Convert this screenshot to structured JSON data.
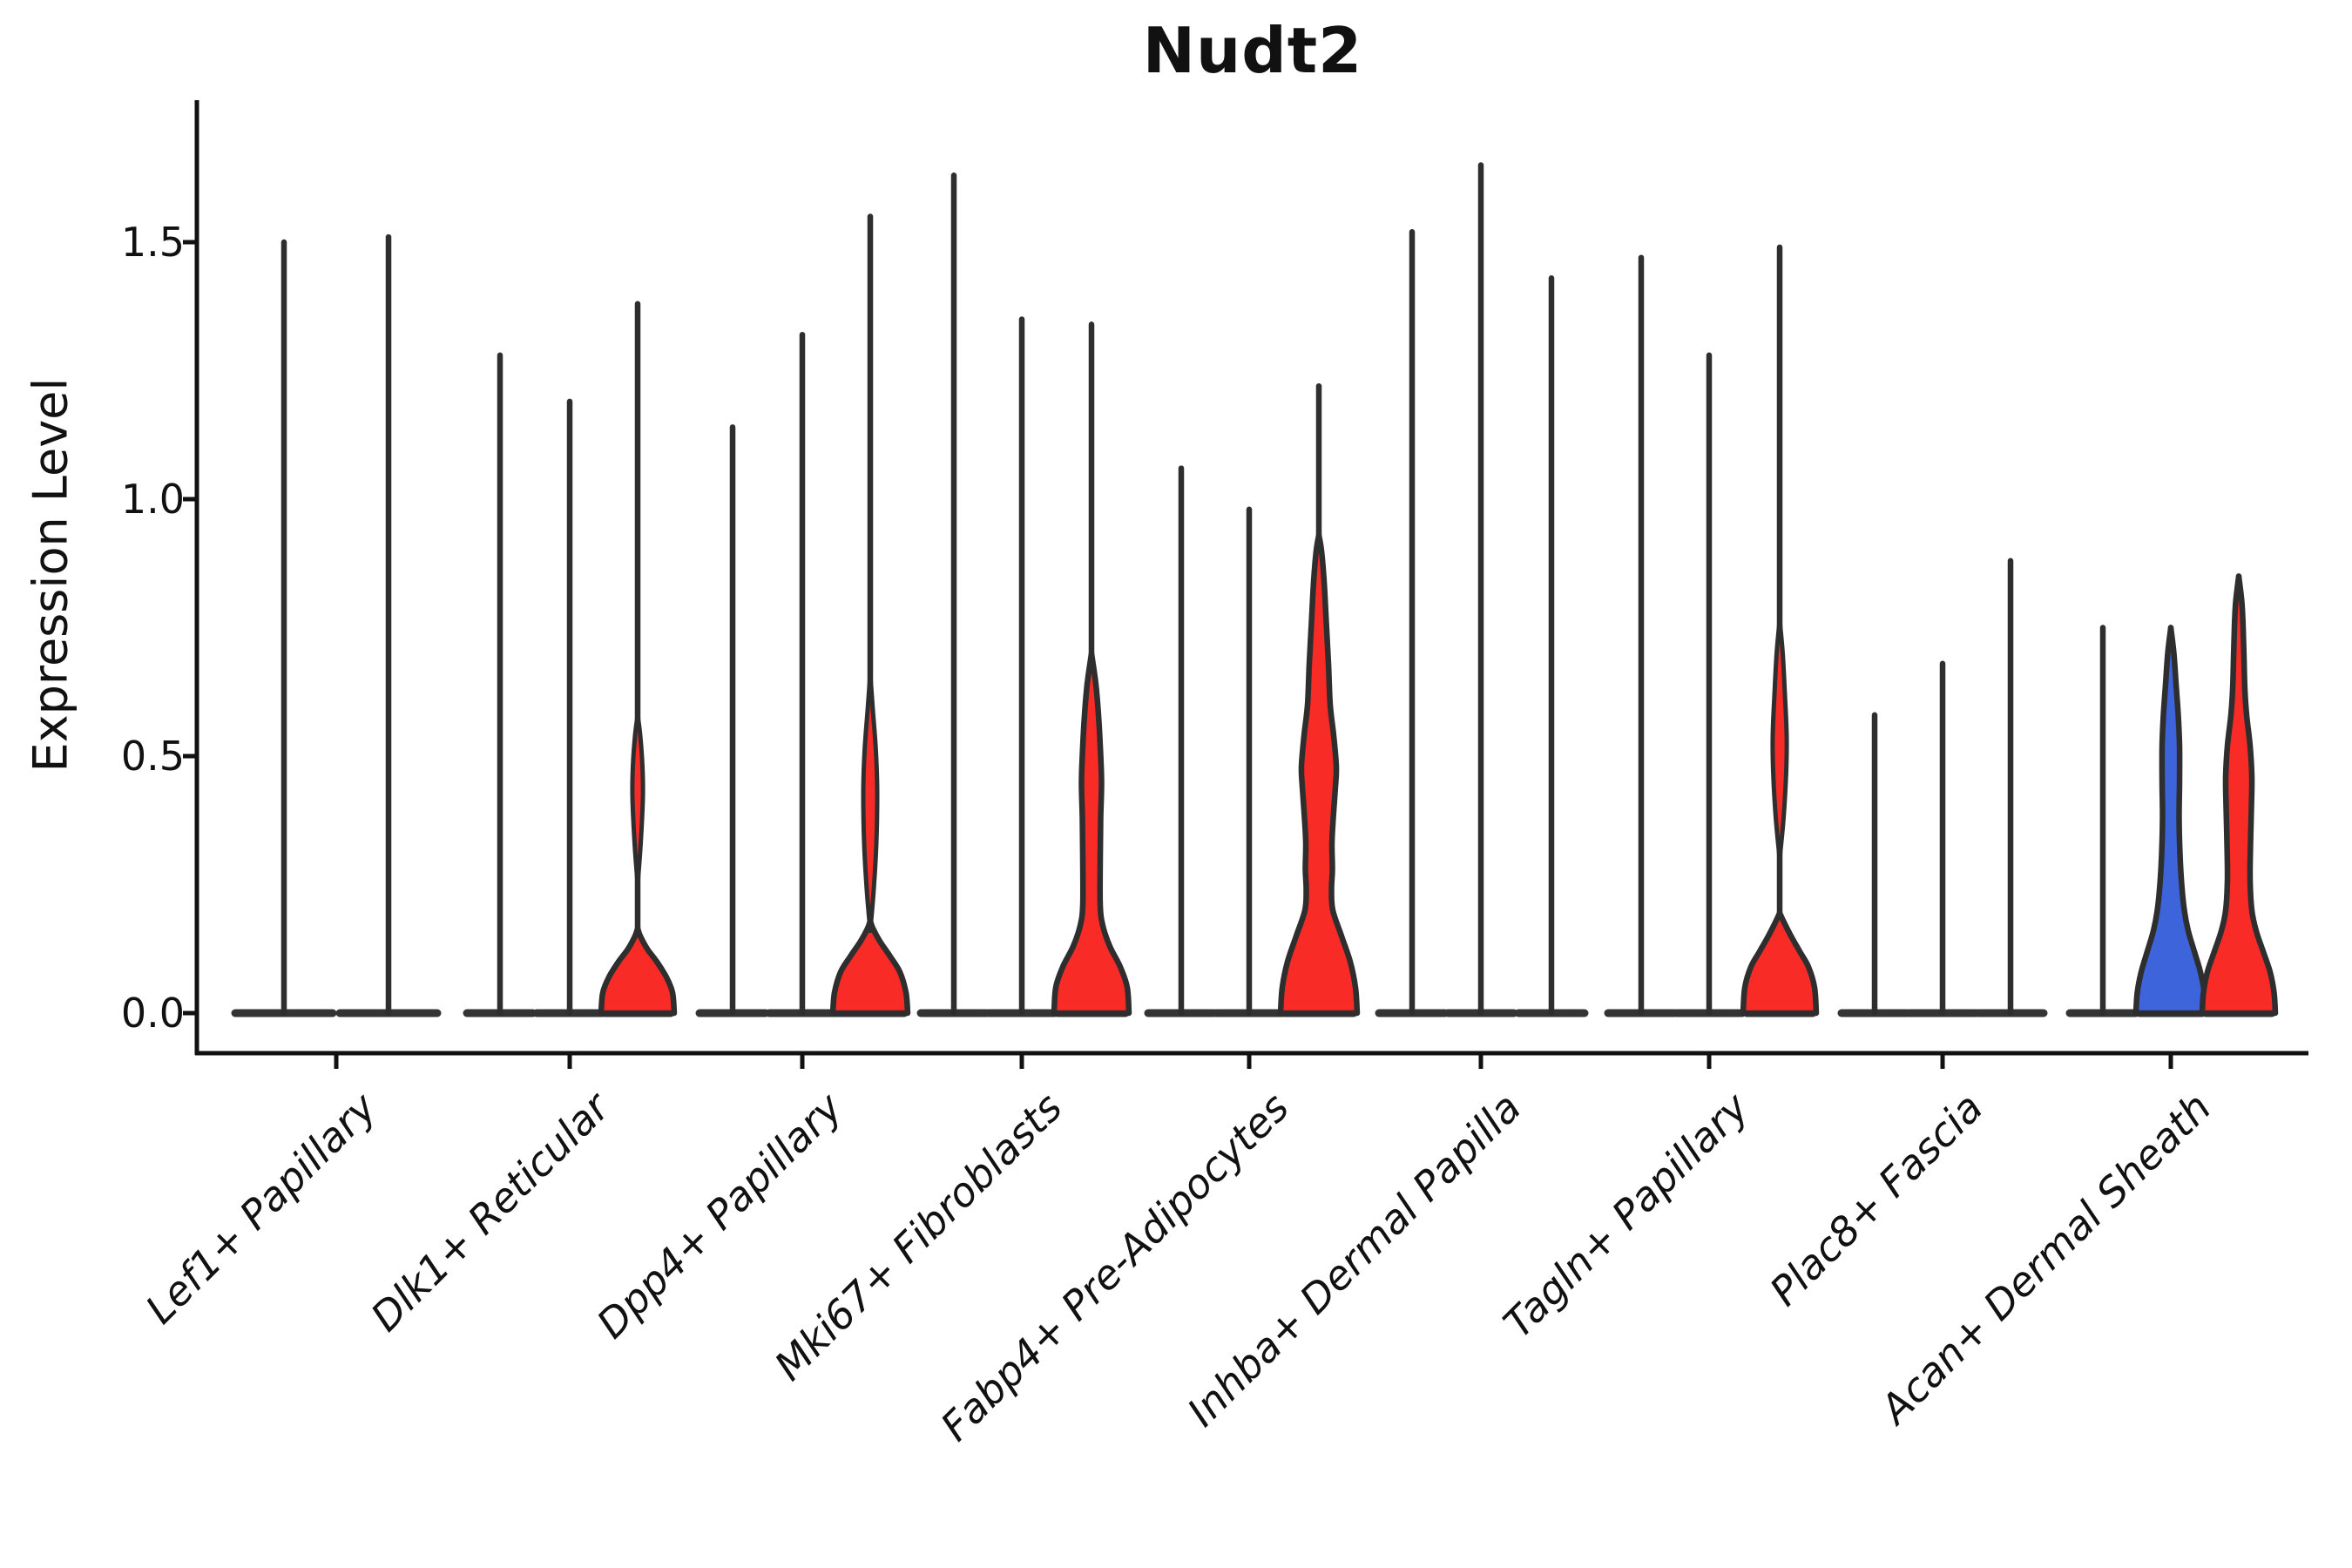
{
  "title": "Nudt2",
  "y_axis": {
    "label": "Expression Level",
    "tick_labels": [
      "0.0",
      "0.5",
      "1.0",
      "1.5"
    ],
    "tick_values": [
      0.0,
      0.5,
      1.0,
      1.5
    ]
  },
  "chart_data": {
    "type": "violin",
    "title": "Nudt2",
    "ylabel": "Expression Level",
    "ylim": [
      0,
      1.77
    ],
    "yticks": [
      0.0,
      0.5,
      1.0,
      1.5
    ],
    "legend_position": "none",
    "grid": false,
    "colors": {
      "red": "#f92b27",
      "blue": "#3e64db",
      "outline": "#2e2e2e",
      "axis": "#111111"
    },
    "categories": [
      "Lef1+ Papillary",
      "Dlk1+ Reticular",
      "Dpp4+ Papillary",
      "Mki67+ Fibroblasts",
      "Fabp4+ Pre-Adipocytes",
      "Inhba+ Dermal Papilla",
      "Tagln+ Papillary",
      "Plac8+ Fascia",
      "Acan+ Dermal Sheath"
    ],
    "groups": [
      {
        "label": "Lef1+ Papillary",
        "center": 386,
        "violins": [
          {
            "cx": 326,
            "max": 1.5,
            "color": null,
            "base_half": 60
          },
          {
            "cx": 446,
            "max": 1.51,
            "color": null,
            "base_half": 60
          }
        ]
      },
      {
        "label": "Dlk1+ Reticular",
        "center": 654,
        "violins": [
          {
            "cx": 574,
            "max": 1.28,
            "color": null,
            "base_half": 42
          },
          {
            "cx": 654,
            "max": 1.19,
            "color": null,
            "base_half": 42
          },
          {
            "cx": 732,
            "max": 1.38,
            "color": "red",
            "base_half": 42,
            "blob": [
              [
                0,
                42
              ],
              [
                0.04,
                40
              ],
              [
                0.07,
                33
              ],
              [
                0.1,
                22
              ],
              [
                0.125,
                11
              ],
              [
                0.15,
                3
              ],
              [
                0.165,
                0
              ]
            ],
            "sliver": [
              [
                0.25,
                0
              ],
              [
                0.33,
                3.5
              ],
              [
                0.42,
                6
              ],
              [
                0.48,
                5.5
              ],
              [
                0.54,
                3
              ],
              [
                0.58,
                0
              ]
            ]
          }
        ]
      },
      {
        "label": "Dpp4+ Papillary",
        "center": 921,
        "violins": [
          {
            "cx": 841,
            "max": 1.14,
            "color": null,
            "base_half": 42
          },
          {
            "cx": 921,
            "max": 1.32,
            "color": null,
            "base_half": 42
          },
          {
            "cx": 999,
            "max": 1.55,
            "color": "red",
            "base_half": 43,
            "blob": [
              [
                0,
                43
              ],
              [
                0.04,
                41
              ],
              [
                0.08,
                34
              ],
              [
                0.11,
                23
              ],
              [
                0.14,
                11
              ],
              [
                0.165,
                3
              ],
              [
                0.18,
                0
              ]
            ],
            "sliver": [
              [
                0.16,
                0
              ],
              [
                0.24,
                4
              ],
              [
                0.33,
                7
              ],
              [
                0.43,
                8
              ],
              [
                0.51,
                6.5
              ],
              [
                0.59,
                3
              ],
              [
                0.66,
                0
              ]
            ]
          }
        ]
      },
      {
        "label": "Mki67+ Fibroblasts",
        "center": 1173,
        "violins": [
          {
            "cx": 1095,
            "max": 1.63,
            "color": null,
            "base_half": 42
          },
          {
            "cx": 1173,
            "max": 1.35,
            "color": null,
            "base_half": 42
          },
          {
            "cx": 1253,
            "max": 1.34,
            "color": "red",
            "base_half": 43,
            "body": [
              [
                0,
                43
              ],
              [
                0.05,
                41
              ],
              [
                0.09,
                33
              ],
              [
                0.13,
                21
              ],
              [
                0.17,
                13
              ],
              [
                0.21,
                10
              ],
              [
                0.3,
                10
              ],
              [
                0.38,
                10.5
              ],
              [
                0.45,
                11.5
              ],
              [
                0.52,
                10
              ],
              [
                0.58,
                8
              ],
              [
                0.64,
                5
              ],
              [
                0.7,
                0
              ]
            ]
          }
        ]
      },
      {
        "label": "Fabp4+ Pre-Adipocytes",
        "center": 1434,
        "violins": [
          {
            "cx": 1356,
            "max": 1.06,
            "color": null,
            "base_half": 42
          },
          {
            "cx": 1434,
            "max": 0.98,
            "color": null,
            "base_half": 42
          },
          {
            "cx": 1514,
            "max": 1.22,
            "color": "red",
            "base_half": 44,
            "body": [
              [
                0,
                44
              ],
              [
                0.05,
                42
              ],
              [
                0.1,
                36
              ],
              [
                0.15,
                26
              ],
              [
                0.2,
                16
              ],
              [
                0.24,
                14.5
              ],
              [
                0.28,
                15.5
              ],
              [
                0.33,
                15
              ],
              [
                0.38,
                16.5
              ],
              [
                0.44,
                19
              ],
              [
                0.48,
                20
              ],
              [
                0.54,
                17
              ],
              [
                0.6,
                13
              ],
              [
                0.68,
                11
              ],
              [
                0.76,
                8.5
              ],
              [
                0.84,
                6
              ],
              [
                0.9,
                3
              ],
              [
                0.93,
                0
              ]
            ]
          }
        ]
      },
      {
        "label": "Inhba+ Dermal Papilla",
        "center": 1700,
        "violins": [
          {
            "cx": 1621,
            "max": 1.52,
            "color": null,
            "base_half": 42
          },
          {
            "cx": 1700,
            "max": 1.65,
            "color": null,
            "base_half": 42
          },
          {
            "cx": 1781,
            "max": 1.43,
            "color": null,
            "base_half": 42
          }
        ]
      },
      {
        "label": "Tagln+ Papillary",
        "center": 1962,
        "violins": [
          {
            "cx": 1884,
            "max": 1.47,
            "color": null,
            "base_half": 42
          },
          {
            "cx": 1962,
            "max": 1.28,
            "color": null,
            "base_half": 42
          },
          {
            "cx": 2043,
            "max": 1.49,
            "color": "red",
            "base_half": 42,
            "blob": [
              [
                0,
                42
              ],
              [
                0.05,
                40
              ],
              [
                0.09,
                33
              ],
              [
                0.12,
                23
              ],
              [
                0.15,
                13
              ],
              [
                0.18,
                4
              ],
              [
                0.195,
                0
              ]
            ],
            "sliver": [
              [
                0.3,
                0
              ],
              [
                0.38,
                4.5
              ],
              [
                0.47,
                7.5
              ],
              [
                0.54,
                8
              ],
              [
                0.62,
                6
              ],
              [
                0.7,
                3.5
              ],
              [
                0.765,
                0
              ]
            ]
          }
        ]
      },
      {
        "label": "Plac8+ Fascia",
        "center": 2230,
        "violins": [
          {
            "cx": 2152,
            "max": 0.58,
            "color": null,
            "base_half": 42
          },
          {
            "cx": 2230,
            "max": 0.68,
            "color": null,
            "base_half": 42
          },
          {
            "cx": 2308,
            "max": 0.88,
            "color": null,
            "base_half": 42
          }
        ]
      },
      {
        "label": "Acan+ Dermal Sheath",
        "center": 2492,
        "violins": [
          {
            "cx": 2414,
            "max": 0.75,
            "color": null,
            "base_half": 42
          },
          {
            "cx": 2492,
            "max": 0.75,
            "color": "blue",
            "base_half": 40,
            "body": [
              [
                0,
                40
              ],
              [
                0.04,
                38.5
              ],
              [
                0.08,
                34
              ],
              [
                0.12,
                27
              ],
              [
                0.16,
                20
              ],
              [
                0.2,
                15.5
              ],
              [
                0.25,
                12.5
              ],
              [
                0.31,
                10.5
              ],
              [
                0.38,
                9.5
              ],
              [
                0.45,
                10
              ],
              [
                0.52,
                10
              ],
              [
                0.58,
                8.5
              ],
              [
                0.64,
                6
              ],
              [
                0.7,
                3.5
              ],
              [
                0.75,
                0
              ]
            ]
          },
          {
            "cx": 2570,
            "max": 0.85,
            "color": "red",
            "base_half": 42,
            "body": [
              [
                0,
                42
              ],
              [
                0.04,
                40.5
              ],
              [
                0.08,
                36
              ],
              [
                0.12,
                28
              ],
              [
                0.16,
                20
              ],
              [
                0.2,
                15
              ],
              [
                0.26,
                13
              ],
              [
                0.33,
                13.5
              ],
              [
                0.4,
                14.5
              ],
              [
                0.46,
                15
              ],
              [
                0.52,
                13
              ],
              [
                0.58,
                9
              ],
              [
                0.63,
                7
              ],
              [
                0.69,
                6
              ],
              [
                0.75,
                5
              ],
              [
                0.8,
                3.5
              ],
              [
                0.85,
                0
              ]
            ]
          }
        ]
      }
    ]
  }
}
